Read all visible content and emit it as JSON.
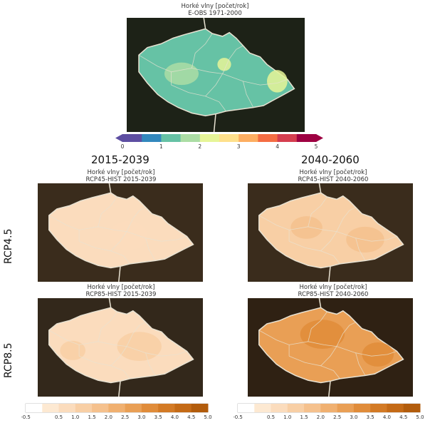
{
  "top_panel": {
    "title_line1": "Horké vlny [počet/rok]",
    "title_line2": "E-OBS 1971-2000"
  },
  "column_titles": [
    "2015-2039",
    "2040-2060"
  ],
  "row_labels": [
    "RCP4.5",
    "RCP8.5"
  ],
  "panels": [
    {
      "title_line1": "Horké vlny [počet/rok]",
      "title_line2": "RCP45-HIST 2015-2039"
    },
    {
      "title_line1": "Horké vlny [počet/rok]",
      "title_line2": "RCP45-HIST 2040-2060"
    },
    {
      "title_line1": "Horké vlny [počet/rok]",
      "title_line2": "RCP85-HIST 2015-2039"
    },
    {
      "title_line1": "Horké vlny [počet/rok]",
      "title_line2": "RCP85-HIST 2040-2060"
    }
  ],
  "chart_data": [
    {
      "type": "heatmap",
      "title": "Horké vlny [počet/rok]",
      "subtitle": "E-OBS 1971-2000",
      "colorbar_ticks": [
        "0",
        "1",
        "2",
        "3",
        "4",
        "5"
      ],
      "colorbar_range": [
        0,
        5
      ],
      "typical_value": 1.4,
      "local_max": 2.0
    },
    {
      "type": "heatmap",
      "title": "Horké vlny [počet/rok]",
      "subtitle": "RCP45-HIST 2015-2039",
      "typical_value": 0.7
    },
    {
      "type": "heatmap",
      "title": "Horké vlny [počet/rok]",
      "subtitle": "RCP45-HIST 2040-2060",
      "typical_value": 1.4
    },
    {
      "type": "heatmap",
      "title": "Horké vlny [počet/rok]",
      "subtitle": "RCP85-HIST 2015-2039",
      "typical_value": 0.8
    },
    {
      "type": "heatmap",
      "title": "Horké vlny [počet/rok]",
      "subtitle": "RCP85-HIST 2040-2060",
      "typical_value": 2.8
    },
    {
      "type": "colorbar",
      "ticks": [
        "-0.5",
        "0.5",
        "1.0",
        "1.5",
        "2.0",
        "2.5",
        "3.0",
        "3.5",
        "4.0",
        "4.5",
        "5.0"
      ],
      "range": [
        -0.5,
        5.0
      ]
    }
  ],
  "colors": {
    "map_bg": "#2a2418",
    "top_bg": "#1d2217",
    "border": "#e8e2d2",
    "top_scale": [
      "#5e4fa2",
      "#3288bd",
      "#66c2a5",
      "#abdda4",
      "#e6f598",
      "#fee08b",
      "#fdae61",
      "#f46d43",
      "#d53e4f",
      "#9e0142"
    ],
    "diff_scale": [
      "#ffffff",
      "#fde9d2",
      "#fbdcbd",
      "#f8cfa5",
      "#f5c18d",
      "#f0b070",
      "#e99f55",
      "#e08c3a",
      "#d37a25",
      "#c46a16",
      "#b25c0c"
    ]
  }
}
